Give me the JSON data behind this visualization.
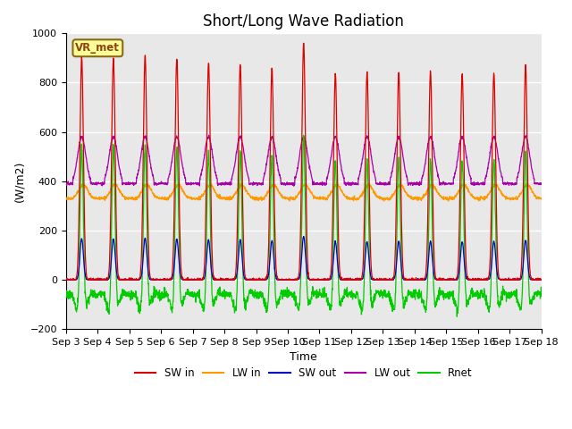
{
  "title": "Short/Long Wave Radiation",
  "xlabel": "Time",
  "ylabel": "(W/m2)",
  "ylim": [
    -200,
    1000
  ],
  "yticks": [
    -200,
    0,
    200,
    400,
    600,
    800,
    1000
  ],
  "xtick_labels": [
    "Sep 3",
    "Sep 4",
    "Sep 5",
    "Sep 6",
    "Sep 7",
    "Sep 8",
    "Sep 9",
    "Sep 10",
    "Sep 11",
    "Sep 12",
    "Sep 13",
    "Sep 14",
    "Sep 15",
    "Sep 16",
    "Sep 17",
    "Sep 18"
  ],
  "station_label": "VR_met",
  "colors": {
    "SW_in": "#dd0000",
    "LW_in": "#ff9900",
    "SW_out": "#0000cc",
    "LW_out": "#aa00aa",
    "Rnet": "#00cc00"
  },
  "legend_labels": [
    "SW in",
    "LW in",
    "SW out",
    "LW out",
    "Rnet"
  ],
  "bg_color": "#e8e8e8",
  "title_fontsize": 12,
  "label_fontsize": 9,
  "tick_fontsize": 8
}
